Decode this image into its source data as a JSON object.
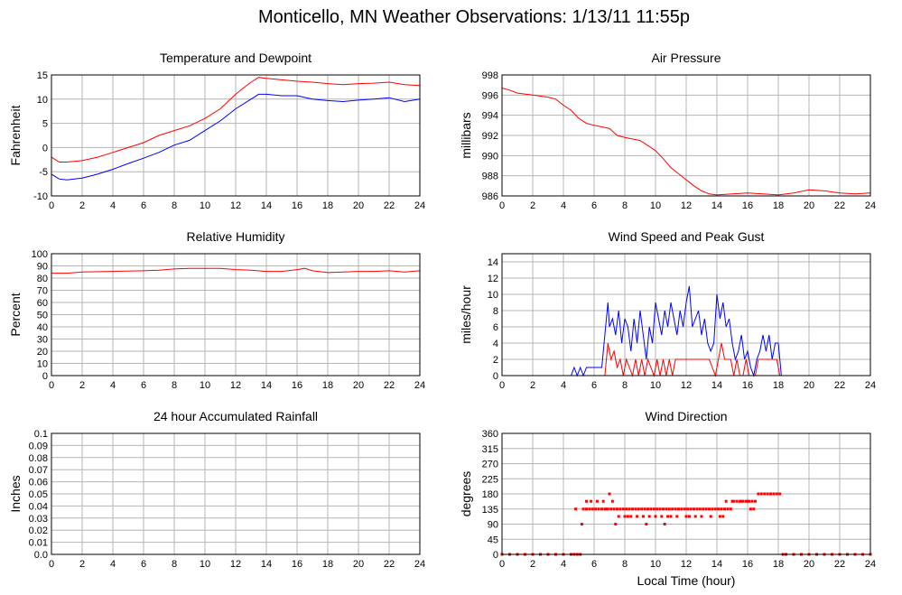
{
  "page": {
    "title": "Monticello, MN Weather Observations: 1/13/11 11:55p"
  },
  "colors": {
    "primary": "#ff0000",
    "secondary": "#0000ff",
    "grid": "#b4b4b4"
  },
  "chart_data": [
    {
      "id": "temp",
      "type": "line",
      "title": "Temperature and Dewpoint",
      "xlabel": "",
      "ylabel": "Fahrenheit",
      "xlim": [
        0,
        24
      ],
      "ylim": [
        -10,
        15
      ],
      "xticks": [
        0,
        2,
        4,
        6,
        8,
        10,
        12,
        14,
        16,
        18,
        20,
        22,
        24
      ],
      "yticks": [
        -10,
        -5,
        0,
        5,
        10,
        15
      ],
      "grid": true,
      "series": [
        {
          "color": "#ff0000",
          "x": [
            0,
            0.5,
            1,
            2,
            3,
            4,
            5,
            6,
            7,
            8,
            9,
            10,
            11,
            12,
            12.5,
            13,
            13.5,
            14,
            15,
            16,
            17,
            18,
            19,
            20,
            21,
            22,
            23,
            24
          ],
          "y": [
            -2,
            -3,
            -3,
            -2.7,
            -2,
            -1,
            0,
            1,
            2.5,
            3.5,
            4.5,
            6,
            8,
            11,
            12.3,
            13.5,
            14.5,
            14.3,
            14,
            13.7,
            13.5,
            13.2,
            13,
            13.2,
            13.3,
            13.5,
            13,
            12.8
          ]
        },
        {
          "color": "#0000ff",
          "x": [
            0,
            0.5,
            1,
            2,
            3,
            4,
            5,
            6,
            7,
            8,
            9,
            10,
            11,
            12,
            12.5,
            13,
            13.5,
            14,
            15,
            16,
            17,
            18,
            19,
            20,
            21,
            22,
            23,
            24
          ],
          "y": [
            -5.5,
            -6.5,
            -6.7,
            -6.3,
            -5.5,
            -4.5,
            -3.3,
            -2.2,
            -1,
            0.5,
            1.5,
            3.5,
            5.5,
            8,
            9,
            10,
            11,
            11,
            10.7,
            10.7,
            10,
            9.7,
            9.5,
            9.8,
            10,
            10.3,
            9.5,
            10
          ]
        }
      ]
    },
    {
      "id": "pressure",
      "type": "line",
      "title": "Air Pressure",
      "xlabel": "",
      "ylabel": "millibars",
      "xlim": [
        0,
        24
      ],
      "ylim": [
        986,
        998
      ],
      "xticks": [
        0,
        2,
        4,
        6,
        8,
        10,
        12,
        14,
        16,
        18,
        20,
        22,
        24
      ],
      "yticks": [
        986,
        988,
        990,
        992,
        994,
        996,
        998
      ],
      "grid": true,
      "series": [
        {
          "color": "#ff0000",
          "x": [
            0,
            0.5,
            1,
            2,
            3,
            3.5,
            4,
            4.5,
            5,
            5.5,
            6,
            7,
            7.5,
            8,
            9,
            10,
            10.5,
            11,
            11.5,
            12,
            12.5,
            13,
            13.5,
            14,
            15,
            16,
            17,
            18,
            19,
            20,
            21,
            22,
            23,
            24
          ],
          "y": [
            996.7,
            996.5,
            996.2,
            996,
            995.8,
            995.6,
            995,
            994.5,
            993.7,
            993.2,
            993,
            992.7,
            992,
            991.8,
            991.5,
            990.5,
            989.7,
            988.8,
            988.2,
            987.6,
            987,
            986.5,
            986.2,
            986.1,
            986.2,
            986.3,
            986.2,
            986.1,
            986.3,
            986.6,
            986.5,
            986.3,
            986.2,
            986.3
          ]
        }
      ]
    },
    {
      "id": "humidity",
      "type": "line",
      "title": "Relative Humidity",
      "xlabel": "",
      "ylabel": "Percent",
      "xlim": [
        0,
        24
      ],
      "ylim": [
        0,
        100
      ],
      "xticks": [
        0,
        2,
        4,
        6,
        8,
        10,
        12,
        14,
        16,
        18,
        20,
        22,
        24
      ],
      "yticks": [
        0,
        10,
        20,
        30,
        40,
        50,
        60,
        70,
        80,
        90,
        100
      ],
      "grid": true,
      "series": [
        {
          "color": "#ff0000",
          "x": [
            0,
            1,
            2,
            4,
            6,
            7,
            8,
            9,
            10,
            11,
            12,
            13,
            14,
            15,
            16,
            16.5,
            17,
            18,
            19,
            20,
            21,
            22,
            23,
            24
          ],
          "y": [
            84,
            84,
            85,
            85.5,
            86,
            86.5,
            87.5,
            88,
            88,
            88,
            87,
            86.5,
            85.5,
            85.5,
            87,
            88,
            86,
            84.5,
            85,
            85.5,
            85.5,
            86,
            85,
            86
          ]
        }
      ]
    },
    {
      "id": "wind",
      "type": "line",
      "title": "Wind Speed and Peak Gust",
      "xlabel": "",
      "ylabel": "miles/hour",
      "xlim": [
        0,
        24
      ],
      "ylim": [
        0,
        15
      ],
      "xticks": [
        0,
        2,
        4,
        6,
        8,
        10,
        12,
        14,
        16,
        18,
        20,
        22,
        24
      ],
      "yticks": [
        0,
        2,
        4,
        6,
        8,
        10,
        12,
        14
      ],
      "grid": true,
      "series": [
        {
          "color": "#0000ff",
          "x": [
            0,
            4.5,
            4.7,
            4.9,
            5.1,
            5.3,
            5.5,
            6.5,
            6.7,
            6.9,
            7.0,
            7.2,
            7.4,
            7.6,
            7.8,
            8.0,
            8.2,
            8.4,
            8.6,
            8.8,
            9.0,
            9.2,
            9.4,
            9.6,
            9.8,
            10.0,
            10.2,
            10.4,
            10.6,
            10.8,
            11.0,
            11.2,
            11.4,
            11.6,
            11.8,
            12.0,
            12.2,
            12.4,
            12.6,
            12.8,
            13.0,
            13.2,
            13.4,
            13.6,
            13.8,
            14.0,
            14.2,
            14.4,
            14.6,
            14.8,
            15.0,
            15.2,
            15.4,
            15.6,
            15.8,
            16.0,
            16.2,
            16.4,
            16.6,
            16.8,
            17.0,
            17.2,
            17.4,
            17.6,
            17.8,
            18.0,
            18.2,
            18.4,
            24
          ],
          "y": [
            0,
            0,
            1,
            0,
            1,
            0,
            1,
            1,
            5,
            9,
            6,
            7,
            5,
            8,
            4,
            7,
            6,
            3,
            7,
            4,
            8,
            5,
            2,
            6,
            4,
            9,
            7,
            5,
            8,
            6,
            9,
            7,
            5,
            8,
            6,
            9,
            11,
            6,
            7,
            8,
            5,
            7,
            4,
            3,
            4,
            10,
            7,
            9,
            6,
            7,
            4,
            2,
            3,
            5,
            2,
            3,
            1,
            0,
            2,
            3,
            5,
            3,
            5,
            2,
            4,
            4,
            0,
            0,
            0
          ]
        },
        {
          "color": "#ff0000",
          "x": [
            0,
            6.7,
            6.9,
            7.1,
            7.3,
            7.5,
            7.7,
            7.9,
            8.1,
            8.3,
            8.5,
            8.7,
            8.9,
            9.1,
            9.3,
            9.5,
            9.7,
            9.9,
            10.1,
            10.3,
            10.5,
            10.7,
            10.9,
            11.1,
            11.3,
            11.5,
            12.0,
            13.0,
            13.5,
            13.9,
            14.1,
            14.3,
            14.5,
            14.7,
            14.9,
            15.1,
            15.3,
            15.5,
            15.7,
            15.9,
            16.1,
            16.3,
            16.5,
            16.7,
            16.9,
            17.1,
            17.3,
            17.5,
            17.7,
            17.9,
            18.1,
            18.3,
            24
          ],
          "y": [
            0,
            0,
            4,
            2,
            3,
            1,
            2,
            0,
            2,
            1,
            0,
            2,
            0,
            2,
            0,
            2,
            1,
            0,
            2,
            0,
            2,
            0,
            2,
            0,
            2,
            2,
            2,
            2,
            2,
            0,
            2,
            4,
            2,
            2,
            2,
            0,
            2,
            0,
            0,
            2,
            0,
            0,
            0,
            2,
            2,
            2,
            2,
            2,
            2,
            2,
            0,
            0,
            0
          ]
        }
      ]
    },
    {
      "id": "rain",
      "type": "line",
      "title": "24 hour Accumulated Rainfall",
      "xlabel": "",
      "ylabel": "Inches",
      "xlim": [
        0,
        24
      ],
      "ylim": [
        0,
        0.1
      ],
      "xticks": [
        0,
        2,
        4,
        6,
        8,
        10,
        12,
        14,
        16,
        18,
        20,
        22,
        24
      ],
      "yticks": [
        0.0,
        0.01,
        0.02,
        0.03,
        0.04,
        0.05,
        0.06,
        0.07,
        0.08,
        0.09,
        0.1
      ],
      "ytick_labels": [
        "0.0",
        "0.01",
        "0.02",
        "0.03",
        "0.04",
        "0.05",
        "0.06",
        "0.07",
        "0.08",
        "0.09",
        "0.1"
      ],
      "grid": true,
      "series": [
        {
          "color": "#ff0000",
          "x": [
            0,
            24
          ],
          "y": [
            0,
            0
          ]
        }
      ]
    },
    {
      "id": "direction",
      "type": "scatter",
      "title": "Wind Direction",
      "xlabel": "Local Time (hour)",
      "ylabel": "degrees",
      "xlim": [
        0,
        24
      ],
      "ylim": [
        0,
        360
      ],
      "xticks": [
        0,
        2,
        4,
        6,
        8,
        10,
        12,
        14,
        16,
        18,
        20,
        22,
        24
      ],
      "yticks": [
        0,
        45,
        90,
        135,
        180,
        225,
        270,
        315,
        360
      ],
      "grid": true,
      "series": [
        {
          "color": "#ff0000",
          "x": [
            0,
            0.5,
            1,
            1.5,
            2,
            2.5,
            3,
            3.5,
            4,
            4.5,
            4.7,
            4.9,
            5.1,
            5.3,
            5.5,
            5.7,
            5.9,
            6.1,
            6.3,
            6.5,
            6.7,
            6.9,
            7.1,
            7.3,
            7.5,
            7.7,
            7.9,
            8.1,
            8.3,
            8.5,
            8.7,
            8.9,
            9.1,
            9.3,
            9.5,
            9.7,
            9.9,
            10.1,
            10.3,
            10.5,
            10.7,
            10.9,
            11.1,
            11.3,
            11.5,
            11.7,
            11.9,
            12.1,
            12.3,
            12.5,
            12.7,
            12.9,
            13.1,
            13.3,
            13.5,
            13.7,
            13.9,
            14.1,
            14.3,
            14.5,
            14.7,
            14.9,
            15.1,
            15.3,
            15.5,
            15.7,
            15.9,
            16.1,
            16.3,
            16.5,
            16.7,
            16.9,
            17.1,
            17.3,
            17.5,
            17.7,
            17.9,
            18.1,
            18.3,
            18.5,
            19,
            19.5,
            20,
            20.5,
            21,
            21.5,
            22,
            22.5,
            23,
            23.5,
            24,
            5.5,
            5.8,
            6.2,
            6.6,
            7.2,
            7.6,
            8.0,
            8.4,
            8.8,
            9.2,
            9.6,
            10.0,
            10.4,
            10.8,
            11.4,
            12.0,
            12.6,
            13.0,
            13.6,
            14.2,
            14.6,
            15.0,
            15.6,
            16.0,
            16.4,
            5.2,
            7.4,
            8.2,
            9.4,
            10.6,
            14.4,
            16.2,
            4.8,
            6.8,
            7.0,
            11.0,
            12.2
          ],
          "y": [
            0,
            0,
            0,
            0,
            0,
            0,
            0,
            0,
            0,
            0,
            0,
            0,
            0,
            135,
            135,
            135,
            135,
            135,
            135,
            135,
            135,
            135,
            135,
            135,
            135,
            135,
            135,
            135,
            135,
            135,
            135,
            135,
            135,
            135,
            135,
            135,
            135,
            135,
            135,
            135,
            135,
            135,
            135,
            135,
            135,
            135,
            135,
            135,
            135,
            135,
            135,
            135,
            135,
            135,
            135,
            135,
            135,
            135,
            135,
            135,
            135,
            135,
            158,
            158,
            158,
            158,
            158,
            158,
            158,
            158,
            180,
            180,
            180,
            180,
            180,
            180,
            180,
            180,
            0,
            0,
            0,
            0,
            0,
            0,
            0,
            0,
            0,
            0,
            0,
            0,
            0,
            158,
            158,
            158,
            158,
            158,
            113,
            113,
            113,
            113,
            113,
            113,
            113,
            113,
            113,
            113,
            113,
            113,
            113,
            113,
            113,
            158,
            158,
            158,
            158,
            135,
            90,
            90,
            113,
            90,
            90,
            113,
            135,
            135,
            135,
            180,
            113,
            113
          ]
        }
      ]
    }
  ]
}
